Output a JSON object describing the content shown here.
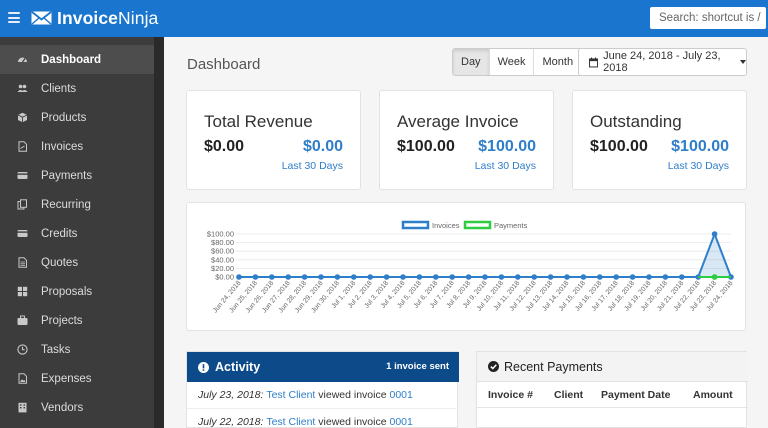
{
  "app": {
    "brand_bold": "Invoice",
    "brand_light": "Ninja",
    "search_placeholder": "Search: shortcut is /"
  },
  "sidebar": {
    "items": [
      {
        "label": "Dashboard",
        "icon": "dashboard-icon",
        "active": true
      },
      {
        "label": "Clients",
        "icon": "users-icon"
      },
      {
        "label": "Products",
        "icon": "cube-icon"
      },
      {
        "label": "Invoices",
        "icon": "file-pdf-icon"
      },
      {
        "label": "Payments",
        "icon": "credit-card-icon"
      },
      {
        "label": "Recurring",
        "icon": "files-icon"
      },
      {
        "label": "Credits",
        "icon": "credit-card-icon"
      },
      {
        "label": "Quotes",
        "icon": "file-text-icon"
      },
      {
        "label": "Proposals",
        "icon": "th-large-icon"
      },
      {
        "label": "Projects",
        "icon": "briefcase-icon"
      },
      {
        "label": "Tasks",
        "icon": "clock-icon"
      },
      {
        "label": "Expenses",
        "icon": "file-image-icon"
      },
      {
        "label": "Vendors",
        "icon": "building-icon"
      }
    ]
  },
  "header": {
    "title": "Dashboard",
    "range_buttons": [
      "Day",
      "Week",
      "Month"
    ],
    "active_range": "Day",
    "date_range": "June 24, 2018 - July 23, 2018"
  },
  "cards": [
    {
      "title": "Total Revenue",
      "value": "$0.00",
      "alt_value": "$0.00",
      "sub": "Last 30 Days"
    },
    {
      "title": "Average Invoice",
      "value": "$100.00",
      "alt_value": "$100.00",
      "sub": "Last 30 Days"
    },
    {
      "title": "Outstanding",
      "value": "$100.00",
      "alt_value": "$100.00",
      "sub": "Last 30 Days"
    }
  ],
  "chart_data": {
    "type": "line",
    "series": [
      {
        "name": "Invoices",
        "color": "#2f7ec9",
        "values": [
          0,
          0,
          0,
          0,
          0,
          0,
          0,
          0,
          0,
          0,
          0,
          0,
          0,
          0,
          0,
          0,
          0,
          0,
          0,
          0,
          0,
          0,
          0,
          0,
          0,
          0,
          0,
          0,
          0,
          100,
          0
        ]
      },
      {
        "name": "Payments",
        "color": "#2ecc40",
        "values": [
          0,
          0,
          0,
          0,
          0,
          0,
          0,
          0,
          0,
          0,
          0,
          0,
          0,
          0,
          0,
          0,
          0,
          0,
          0,
          0,
          0,
          0,
          0,
          0,
          0,
          0,
          0,
          0,
          0,
          0,
          0
        ]
      }
    ],
    "x": [
      "Jun 24, 2018",
      "Jun 25, 2018",
      "Jun 26, 2018",
      "Jun 27, 2018",
      "Jun 28, 2018",
      "Jun 29, 2018",
      "Jun 30, 2018",
      "Jul 1, 2018",
      "Jul 2, 2018",
      "Jul 3, 2018",
      "Jul 4, 2018",
      "Jul 5, 2018",
      "Jul 6, 2018",
      "Jul 7, 2018",
      "Jul 8, 2018",
      "Jul 9, 2018",
      "Jul 10, 2018",
      "Jul 11, 2018",
      "Jul 12, 2018",
      "Jul 13, 2018",
      "Jul 14, 2018",
      "Jul 15, 2018",
      "Jul 16, 2018",
      "Jul 17, 2018",
      "Jul 18, 2018",
      "Jul 19, 2018",
      "Jul 20, 2018",
      "Jul 21, 2018",
      "Jul 22, 2018",
      "Jul 23, 2018",
      "Jul 24, 2018"
    ],
    "y_ticks": [
      "$100.00",
      "$80.00",
      "$60.00",
      "$40.00",
      "$20.00",
      "$0.00"
    ],
    "ylim": [
      0,
      100
    ],
    "legend_position": "top",
    "grid": true
  },
  "activity": {
    "title": "Activity",
    "count": "1 invoice sent",
    "rows": [
      {
        "date": "July 23, 2018:",
        "client": "Test Client",
        "action": "viewed invoice",
        "invoice": "0001"
      },
      {
        "date": "July 22, 2018:",
        "client": "Test Client",
        "action": "viewed invoice",
        "invoice": "0001"
      }
    ]
  },
  "payments": {
    "title": "Recent Payments",
    "columns": [
      "Invoice #",
      "Client",
      "Payment Date",
      "Amount"
    ]
  }
}
